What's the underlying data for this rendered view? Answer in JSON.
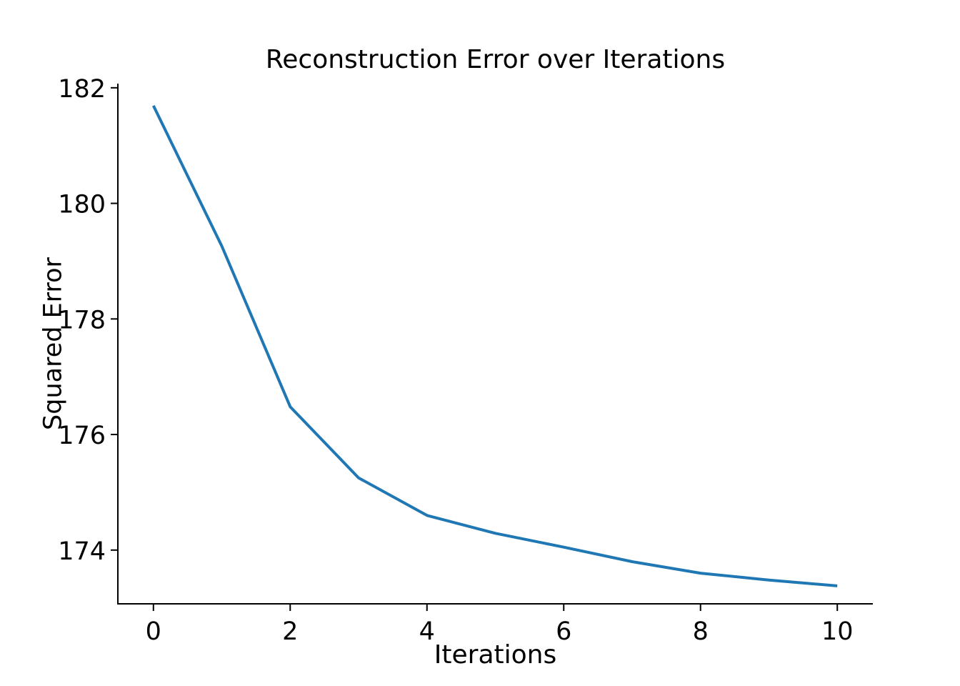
{
  "figure": {
    "background": "#ffffff"
  },
  "chart_data": {
    "type": "line",
    "title": "Reconstruction Error over Iterations",
    "xlabel": "Iterations",
    "ylabel": "Squared Error",
    "x": [
      0,
      1,
      2,
      3,
      4,
      5,
      6,
      7,
      8,
      9,
      10
    ],
    "series": [
      {
        "name": "squared-error",
        "color": "#1f77b4",
        "linewidth": 4,
        "values": [
          181.69,
          179.26,
          176.48,
          175.25,
          174.6,
          174.29,
          174.05,
          173.8,
          173.6,
          173.48,
          173.38
        ]
      }
    ],
    "xticks": {
      "values": [
        0,
        2,
        4,
        6,
        8,
        10
      ],
      "labels": [
        "0",
        "2",
        "4",
        "6",
        "8",
        "10"
      ]
    },
    "yticks": {
      "values": [
        174,
        176,
        178,
        180,
        182
      ],
      "labels": [
        "174",
        "176",
        "178",
        "180",
        "182"
      ]
    },
    "xlim": [
      -0.52,
      10.52
    ],
    "ylim": [
      173.07,
      182.06
    ],
    "grid": false,
    "legend": null,
    "spines": {
      "top": false,
      "right": false
    },
    "axis_color": "#000000",
    "text_color": "#000000",
    "tick_label_fontsize": 35
  }
}
